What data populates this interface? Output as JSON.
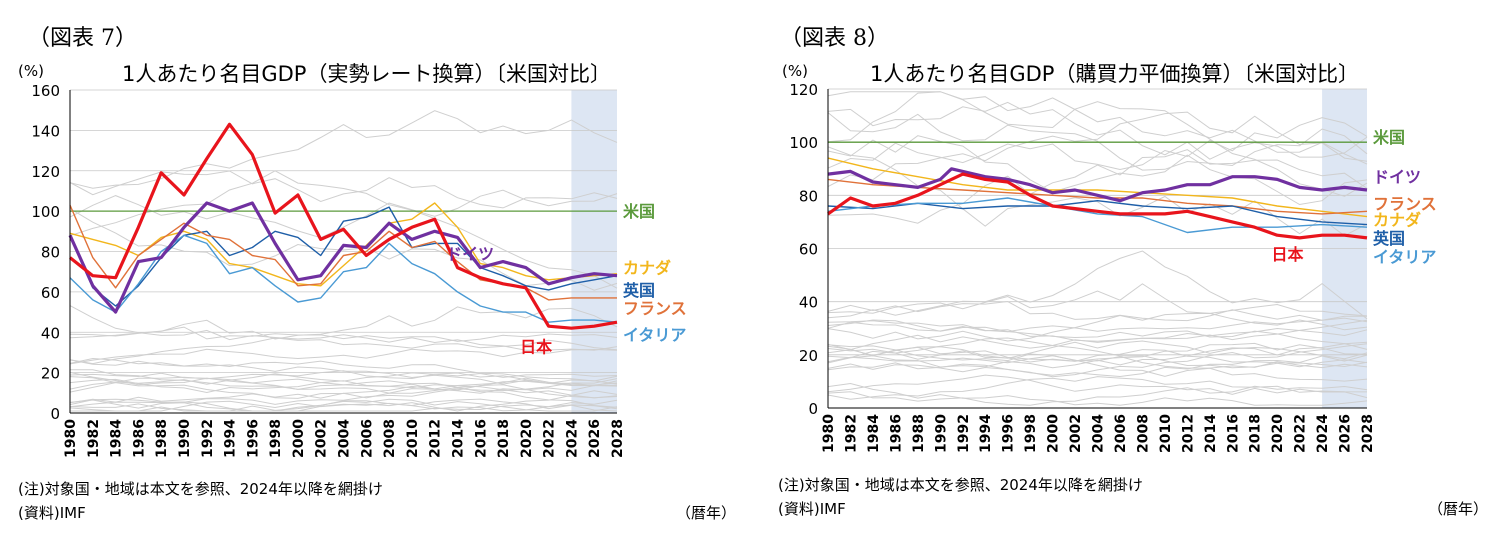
{
  "chart_data": [
    {
      "type": "line",
      "figure_label": "（図表 7）",
      "title": "1人あたり名目GDP（実勢レート換算）〔米国対比〕",
      "ylabel": "(%)",
      "xlabel": "（暦年）",
      "ylim": [
        0,
        160
      ],
      "yticks": [
        "0",
        "20",
        "40",
        "60",
        "80",
        "100",
        "120",
        "140",
        "160"
      ],
      "xlim": [
        1980,
        2028
      ],
      "xticks": [
        "1980",
        "1982",
        "1984",
        "1986",
        "1988",
        "1990",
        "1992",
        "1994",
        "1996",
        "1998",
        "2000",
        "2002",
        "2004",
        "2006",
        "2008",
        "2010",
        "2012",
        "2014",
        "2016",
        "2018",
        "2020",
        "2022",
        "2024",
        "2026",
        "2028"
      ],
      "shade_from": 2024,
      "note": "(注)対象国・地域は本文を参照、2024年以降を網掛け",
      "source": "(資料)IMF",
      "series": [
        {
          "name": "米国",
          "color": "#5b9a3c",
          "width": 1.3,
          "x": [
            1980,
            2028
          ],
          "values": [
            100,
            100
          ]
        },
        {
          "name": "カナダ",
          "color": "#f2b61c",
          "width": 1.4,
          "x": [
            1980,
            1982,
            1984,
            1986,
            1988,
            1990,
            1992,
            1994,
            1996,
            1998,
            2000,
            2002,
            2004,
            2006,
            2008,
            2010,
            2012,
            2014,
            2016,
            2018,
            2020,
            2022,
            2024,
            2026,
            2028
          ],
          "values": [
            89,
            86,
            83,
            78,
            87,
            90,
            86,
            74,
            72,
            68,
            64,
            63,
            73,
            83,
            94,
            96,
            104,
            92,
            74,
            72,
            68,
            66,
            67,
            68,
            69
          ]
        },
        {
          "name": "英国",
          "color": "#1f5fa8",
          "width": 1.4,
          "x": [
            1980,
            1982,
            1984,
            1986,
            1988,
            1990,
            1992,
            1994,
            1996,
            1998,
            2000,
            2002,
            2004,
            2006,
            2008,
            2010,
            2012,
            2014,
            2016,
            2018,
            2020,
            2022,
            2024,
            2026,
            2028
          ],
          "values": [
            88,
            62,
            53,
            63,
            77,
            88,
            90,
            78,
            82,
            90,
            87,
            78,
            95,
            97,
            102,
            82,
            84,
            84,
            72,
            68,
            63,
            61,
            64,
            66,
            68
          ]
        },
        {
          "name": "フランス",
          "color": "#e0723a",
          "width": 1.4,
          "x": [
            1980,
            1982,
            1984,
            1986,
            1988,
            1990,
            1992,
            1994,
            1996,
            1998,
            2000,
            2002,
            2004,
            2006,
            2008,
            2010,
            2012,
            2014,
            2016,
            2018,
            2020,
            2022,
            2024,
            2026,
            2028
          ],
          "values": [
            103,
            77,
            62,
            78,
            86,
            94,
            88,
            86,
            78,
            76,
            63,
            64,
            78,
            80,
            90,
            82,
            85,
            75,
            66,
            64,
            62,
            56,
            57,
            57,
            57
          ]
        },
        {
          "name": "イタリア",
          "color": "#4a9ad4",
          "width": 1.4,
          "x": [
            1980,
            1982,
            1984,
            1986,
            1988,
            1990,
            1992,
            1994,
            1996,
            1998,
            2000,
            2002,
            2004,
            2006,
            2008,
            2010,
            2012,
            2014,
            2016,
            2018,
            2020,
            2022,
            2024,
            2026,
            2028
          ],
          "values": [
            67,
            56,
            50,
            64,
            80,
            88,
            84,
            69,
            72,
            63,
            55,
            57,
            70,
            72,
            84,
            74,
            69,
            60,
            53,
            50,
            50,
            45,
            46,
            46,
            45
          ]
        },
        {
          "name": "ドイツ",
          "color": "#7030a0",
          "width": 3.2,
          "x": [
            1980,
            1982,
            1984,
            1986,
            1988,
            1990,
            1992,
            1994,
            1996,
            1998,
            2000,
            2002,
            2004,
            2006,
            2008,
            2010,
            2012,
            2014,
            2016,
            2018,
            2020,
            2022,
            2024,
            2026,
            2028
          ],
          "values": [
            88,
            63,
            50,
            75,
            77,
            92,
            104,
            100,
            104,
            84,
            66,
            68,
            83,
            82,
            94,
            86,
            90,
            87,
            72,
            75,
            72,
            64,
            67,
            69,
            68
          ]
        },
        {
          "name": "日本",
          "color": "#e8141c",
          "width": 3.2,
          "x": [
            1980,
            1982,
            1984,
            1986,
            1988,
            1990,
            1992,
            1994,
            1996,
            1998,
            2000,
            2002,
            2004,
            2006,
            2008,
            2010,
            2012,
            2014,
            2016,
            2018,
            2020,
            2022,
            2024,
            2026,
            2028
          ],
          "values": [
            77,
            68,
            67,
            92,
            119,
            108,
            126,
            143,
            128,
            99,
            108,
            86,
            91,
            78,
            86,
            92,
            96,
            72,
            67,
            64,
            62,
            43,
            42,
            43,
            45
          ]
        }
      ],
      "labels": [
        {
          "text": "米国",
          "series": "米国",
          "value": 100
        },
        {
          "text": "ドイツ",
          "series": "ドイツ",
          "value": 79,
          "inside": true
        },
        {
          "text": "カナダ",
          "series": "カナダ",
          "value": 72
        },
        {
          "text": "英国",
          "series": "英国",
          "value": 61
        },
        {
          "text": "フランス",
          "series": "フランス",
          "value": 52
        },
        {
          "text": "イタリア",
          "series": "イタリア",
          "value": 39
        },
        {
          "text": "日本",
          "series": "日本",
          "value": 33,
          "inside": true
        }
      ]
    },
    {
      "type": "line",
      "figure_label": "（図表 8）",
      "title": "1人あたり名目GDP（購買力平価換算）〔米国対比〕",
      "ylabel": "(%)",
      "xlabel": "（暦年）",
      "ylim": [
        0,
        120
      ],
      "yticks": [
        "0",
        "20",
        "40",
        "60",
        "80",
        "100",
        "120"
      ],
      "xlim": [
        1980,
        2028
      ],
      "xticks": [
        "1980",
        "1982",
        "1984",
        "1986",
        "1988",
        "1990",
        "1992",
        "1994",
        "1996",
        "1998",
        "2000",
        "2002",
        "2004",
        "2006",
        "2008",
        "2010",
        "2012",
        "2014",
        "2016",
        "2018",
        "2020",
        "2022",
        "2024",
        "2026",
        "2028"
      ],
      "shade_from": 2024,
      "note": "(注)対象国・地域は本文を参照、2024年以降を網掛け",
      "source": "(資料)IMF",
      "series": [
        {
          "name": "米国",
          "color": "#5b9a3c",
          "width": 1.3,
          "x": [
            1980,
            2028
          ],
          "values": [
            100,
            100
          ]
        },
        {
          "name": "カナダ",
          "color": "#f2b61c",
          "width": 1.4,
          "x": [
            1980,
            1984,
            1988,
            1992,
            1996,
            2000,
            2004,
            2008,
            2012,
            2016,
            2020,
            2024,
            2028
          ],
          "values": [
            94,
            90,
            87,
            84,
            82,
            82,
            82,
            81,
            80,
            79,
            76,
            74,
            72
          ]
        },
        {
          "name": "フランス",
          "color": "#e0723a",
          "width": 1.4,
          "x": [
            1980,
            1984,
            1988,
            1992,
            1996,
            2000,
            2004,
            2008,
            2012,
            2016,
            2020,
            2024,
            2028
          ],
          "values": [
            86,
            84,
            83,
            82,
            81,
            80,
            79,
            79,
            77,
            76,
            74,
            73,
            74
          ]
        },
        {
          "name": "英国",
          "color": "#1f5fa8",
          "width": 1.4,
          "x": [
            1980,
            1984,
            1988,
            1992,
            1996,
            2000,
            2004,
            2008,
            2012,
            2016,
            2020,
            2024,
            2028
          ],
          "values": [
            76,
            75,
            77,
            75,
            76,
            76,
            78,
            76,
            75,
            76,
            72,
            70,
            69
          ]
        },
        {
          "name": "イタリア",
          "color": "#4a9ad4",
          "width": 1.4,
          "x": [
            1980,
            1984,
            1988,
            1992,
            1996,
            2000,
            2004,
            2008,
            2012,
            2016,
            2020,
            2024,
            2028
          ],
          "values": [
            74,
            76,
            77,
            77,
            79,
            76,
            73,
            72,
            66,
            68,
            68,
            69,
            68
          ]
        },
        {
          "name": "ドイツ",
          "color": "#7030a0",
          "width": 3.2,
          "x": [
            1980,
            1982,
            1984,
            1986,
            1988,
            1990,
            1991,
            1992,
            1994,
            1996,
            1998,
            2000,
            2002,
            2004,
            2006,
            2008,
            2010,
            2012,
            2014,
            2016,
            2018,
            2020,
            2022,
            2024,
            2026,
            2028
          ],
          "values": [
            88,
            89,
            85,
            84,
            83,
            86,
            90,
            89,
            87,
            86,
            84,
            81,
            82,
            80,
            78,
            81,
            82,
            84,
            84,
            87,
            87,
            86,
            83,
            82,
            83,
            82
          ]
        },
        {
          "name": "日本",
          "color": "#e8141c",
          "width": 3.2,
          "x": [
            1980,
            1982,
            1984,
            1986,
            1988,
            1990,
            1992,
            1994,
            1996,
            1998,
            2000,
            2002,
            2004,
            2006,
            2008,
            2010,
            2012,
            2014,
            2016,
            2018,
            2020,
            2022,
            2024,
            2026,
            2028
          ],
          "values": [
            73,
            79,
            76,
            77,
            80,
            84,
            88,
            86,
            85,
            80,
            76,
            75,
            74,
            73,
            73,
            73,
            74,
            72,
            70,
            68,
            65,
            64,
            65,
            65,
            64
          ]
        }
      ],
      "labels": [
        {
          "text": "米国",
          "series": "米国",
          "value": 102
        },
        {
          "text": "ドイツ",
          "series": "ドイツ",
          "value": 87
        },
        {
          "text": "フランス",
          "series": "フランス",
          "value": 77
        },
        {
          "text": "カナダ",
          "series": "カナダ",
          "value": 71
        },
        {
          "text": "英国",
          "series": "英国",
          "value": 64
        },
        {
          "text": "日本",
          "series": "日本",
          "value": 58,
          "inside": true
        },
        {
          "text": "イタリア",
          "series": "イタリア",
          "value": 57
        }
      ]
    }
  ]
}
